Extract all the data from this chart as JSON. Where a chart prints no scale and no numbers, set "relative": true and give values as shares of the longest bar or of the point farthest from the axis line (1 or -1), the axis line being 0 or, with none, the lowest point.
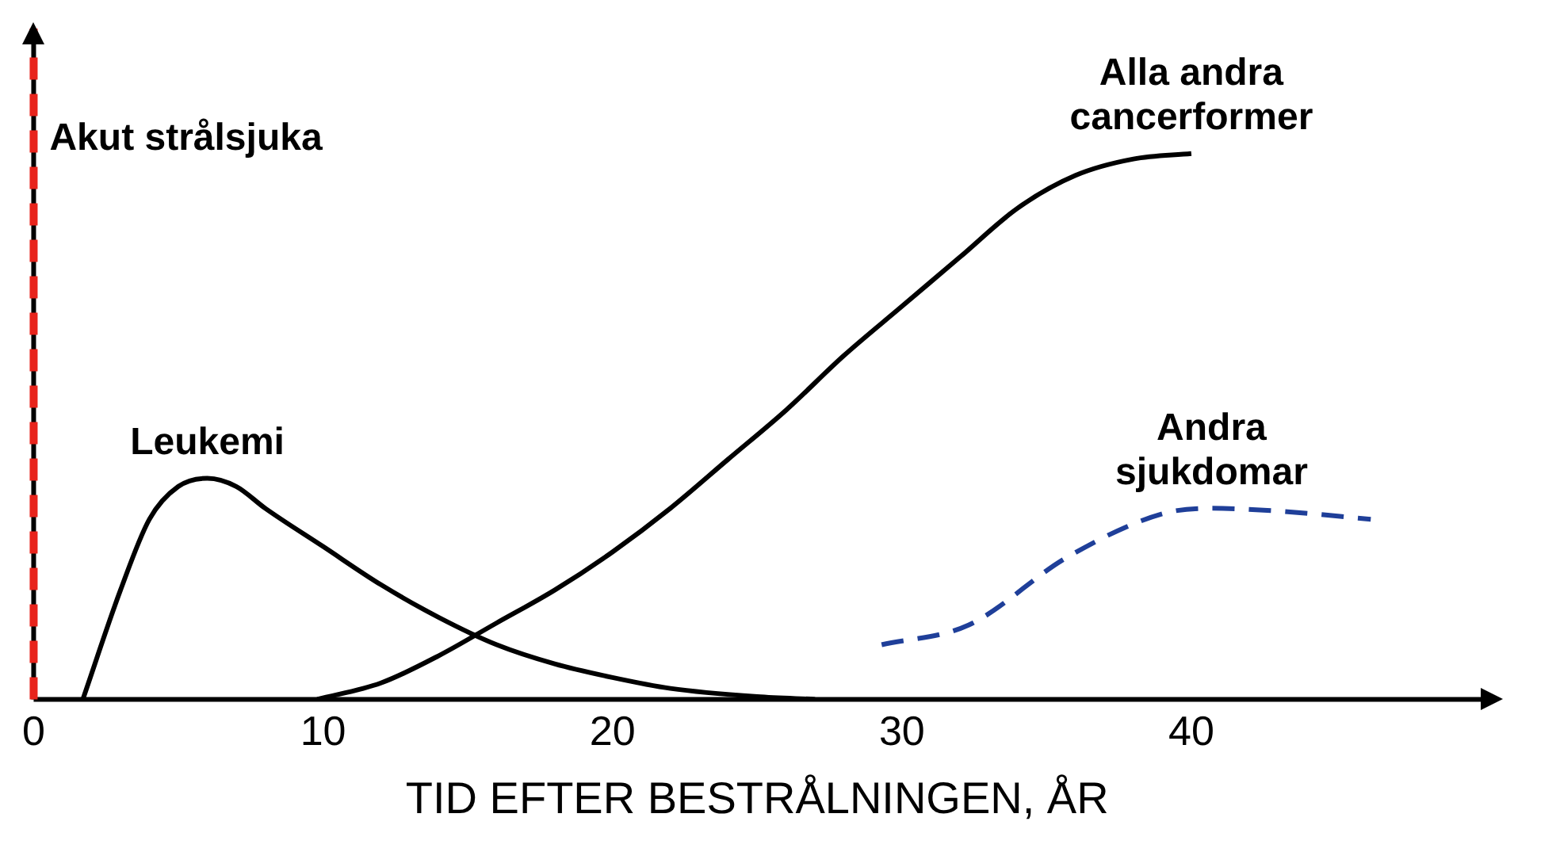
{
  "chart_data": {
    "type": "line",
    "relative": true,
    "xlabel": "TID EFTER BESTRÅLNINGEN, ÅR",
    "xlim": [
      0,
      50
    ],
    "xticks": [
      0,
      10,
      20,
      30,
      40
    ],
    "grid": false,
    "legend": false,
    "marker": "none",
    "series": [
      {
        "name": "Leukemi",
        "color": "#000000",
        "line_style": "solid",
        "x": [
          1.7,
          3,
          4,
          5,
          6,
          7,
          8,
          10,
          12,
          14,
          16,
          18,
          20,
          22,
          25,
          27
        ],
        "values": [
          0,
          0.2,
          0.33,
          0.39,
          0.405,
          0.39,
          0.35,
          0.28,
          0.21,
          0.15,
          0.1,
          0.065,
          0.04,
          0.02,
          0.005,
          0
        ]
      },
      {
        "name": "Alla andra cancerformer",
        "color": "#000000",
        "line_style": "solid",
        "x": [
          9.8,
          12,
          14,
          16,
          18,
          20,
          22,
          24,
          26,
          28,
          30,
          32,
          34,
          36,
          38,
          40
        ],
        "values": [
          0,
          0.03,
          0.08,
          0.14,
          0.2,
          0.27,
          0.35,
          0.44,
          0.53,
          0.63,
          0.72,
          0.81,
          0.9,
          0.96,
          0.99,
          1
        ]
      },
      {
        "name": "Andra sjukdomar",
        "color": "#1f3f99",
        "line_style": "dashed",
        "x": [
          29.3,
          32.3,
          35.7,
          39,
          40.7,
          43,
          46.2
        ],
        "values": [
          0.1,
          0.136,
          0.26,
          0.34,
          0.35,
          0.345,
          0.33
        ]
      }
    ],
    "ref_lines": [
      {
        "axis": "x",
        "value": 0,
        "label": "Akut strålsjuka",
        "color": "#e8241c",
        "line_style": "dashed"
      }
    ]
  }
}
